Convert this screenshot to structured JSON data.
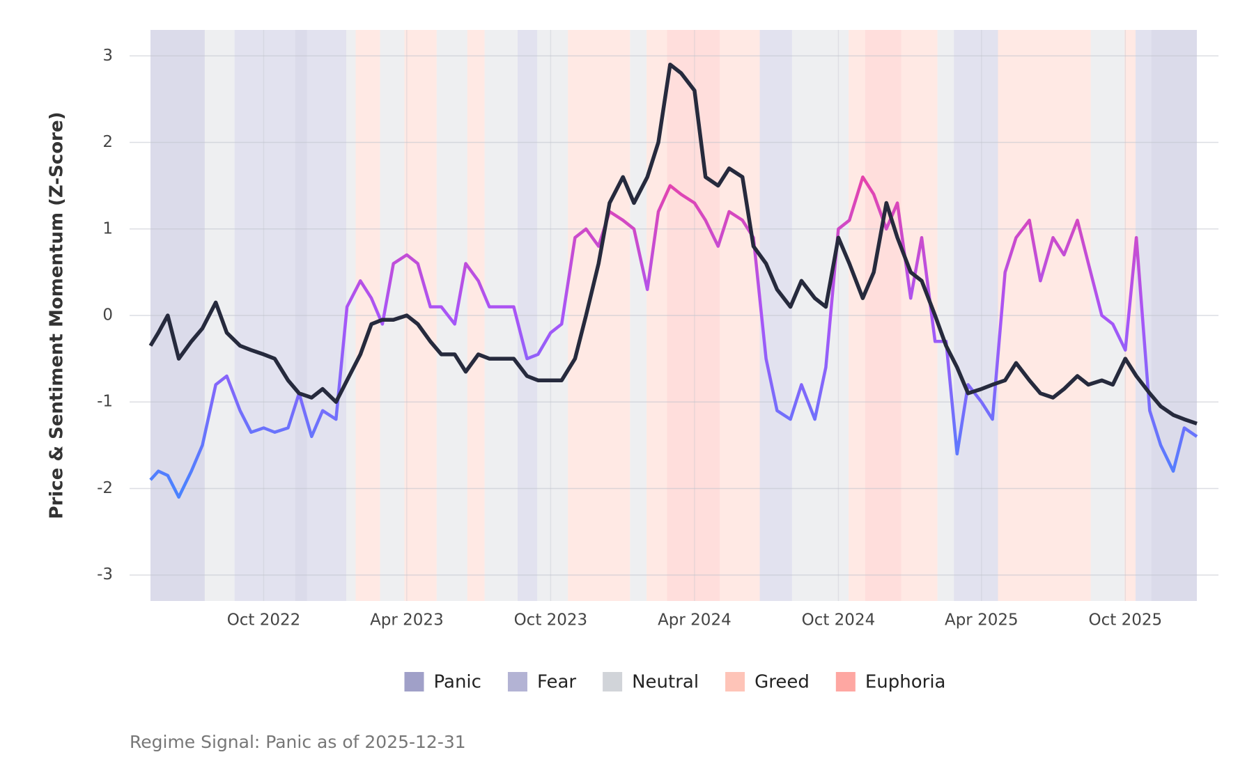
{
  "chart_data": {
    "type": "line",
    "y_label": "Price & Sentiment Momentum (Z-Score)",
    "annotation": "Regime Signal: Panic as of 2025-12-31",
    "xlim": [
      "2022-05-10",
      "2025-12-31"
    ],
    "xticks": [
      {
        "value": "2022-10-01",
        "label": "Oct 2022"
      },
      {
        "value": "2023-04-01",
        "label": "Apr 2023"
      },
      {
        "value": "2023-10-01",
        "label": "Oct 2023"
      },
      {
        "value": "2024-04-01",
        "label": "Apr 2024"
      },
      {
        "value": "2024-10-01",
        "label": "Oct 2024"
      },
      {
        "value": "2025-04-01",
        "label": "Apr 2025"
      },
      {
        "value": "2025-10-01",
        "label": "Oct 2025"
      }
    ],
    "ylim": [
      -3.3,
      3.3
    ],
    "yticks": [
      -3,
      -2,
      -1,
      0,
      1,
      2,
      3
    ],
    "grid": true,
    "legend": [
      {
        "name": "Panic",
        "color": "#a0a0c8"
      },
      {
        "name": "Fear",
        "color": "#b3b3d4"
      },
      {
        "name": "Neutral",
        "color": "#d1d4d9"
      },
      {
        "name": "Greed",
        "color": "#fec4b8"
      },
      {
        "name": "Euphoria",
        "color": "#fea7a2"
      }
    ],
    "regimes": [
      {
        "start": "2022-05-10",
        "regime": "Panic"
      },
      {
        "start": "2022-07-18",
        "regime": "Neutral"
      },
      {
        "start": "2022-08-25",
        "regime": "Fear"
      },
      {
        "start": "2022-11-10",
        "regime": "Panic"
      },
      {
        "start": "2022-11-25",
        "regime": "Fear"
      },
      {
        "start": "2023-01-14",
        "regime": "Neutral"
      },
      {
        "start": "2023-01-26",
        "regime": "Greed"
      },
      {
        "start": "2023-02-26",
        "regime": "Neutral"
      },
      {
        "start": "2023-03-29",
        "regime": "Greed"
      },
      {
        "start": "2023-05-09",
        "regime": "Neutral"
      },
      {
        "start": "2023-06-17",
        "regime": "Greed"
      },
      {
        "start": "2023-07-09",
        "regime": "Neutral"
      },
      {
        "start": "2023-08-20",
        "regime": "Fear"
      },
      {
        "start": "2023-09-14",
        "regime": "Neutral"
      },
      {
        "start": "2023-10-23",
        "regime": "Greed"
      },
      {
        "start": "2024-01-10",
        "regime": "Neutral"
      },
      {
        "start": "2024-01-31",
        "regime": "Greed"
      },
      {
        "start": "2024-02-26",
        "regime": "Euphoria"
      },
      {
        "start": "2024-05-03",
        "regime": "Greed"
      },
      {
        "start": "2024-06-23",
        "regime": "Fear"
      },
      {
        "start": "2024-08-03",
        "regime": "Neutral"
      },
      {
        "start": "2024-10-14",
        "regime": "Greed"
      },
      {
        "start": "2024-11-04",
        "regime": "Euphoria"
      },
      {
        "start": "2024-12-20",
        "regime": "Greed"
      },
      {
        "start": "2025-02-04",
        "regime": "Neutral"
      },
      {
        "start": "2025-02-25",
        "regime": "Fear"
      },
      {
        "start": "2025-04-22",
        "regime": "Greed"
      },
      {
        "start": "2025-08-18",
        "regime": "Neutral"
      },
      {
        "start": "2025-09-30",
        "regime": "Greed"
      },
      {
        "start": "2025-10-14",
        "regime": "Fear"
      },
      {
        "start": "2025-11-03",
        "regime": "Panic"
      }
    ],
    "x": [
      "2022-05-10",
      "2022-05-20",
      "2022-06-01",
      "2022-06-15",
      "2022-07-01",
      "2022-07-15",
      "2022-08-01",
      "2022-08-15",
      "2022-09-01",
      "2022-09-15",
      "2022-10-01",
      "2022-10-15",
      "2022-11-01",
      "2022-11-15",
      "2022-12-01",
      "2022-12-15",
      "2023-01-01",
      "2023-01-15",
      "2023-02-01",
      "2023-02-15",
      "2023-03-01",
      "2023-03-15",
      "2023-04-01",
      "2023-04-15",
      "2023-05-01",
      "2023-05-15",
      "2023-06-01",
      "2023-06-15",
      "2023-07-01",
      "2023-07-15",
      "2023-08-01",
      "2023-08-15",
      "2023-09-01",
      "2023-09-15",
      "2023-10-01",
      "2023-10-15",
      "2023-11-01",
      "2023-11-15",
      "2023-12-01",
      "2023-12-15",
      "2024-01-01",
      "2024-01-15",
      "2024-02-01",
      "2024-02-15",
      "2024-03-01",
      "2024-03-15",
      "2024-04-01",
      "2024-04-15",
      "2024-05-01",
      "2024-05-15",
      "2024-06-01",
      "2024-06-15",
      "2024-07-01",
      "2024-07-15",
      "2024-08-01",
      "2024-08-15",
      "2024-09-01",
      "2024-09-15",
      "2024-10-01",
      "2024-10-15",
      "2024-11-01",
      "2024-11-15",
      "2024-12-01",
      "2024-12-15",
      "2025-01-01",
      "2025-01-15",
      "2025-02-01",
      "2025-02-15",
      "2025-03-01",
      "2025-03-15",
      "2025-04-01",
      "2025-04-15",
      "2025-05-01",
      "2025-05-15",
      "2025-06-01",
      "2025-06-15",
      "2025-07-01",
      "2025-07-15",
      "2025-08-01",
      "2025-08-15",
      "2025-09-01",
      "2025-09-15",
      "2025-10-01",
      "2025-10-15",
      "2025-11-01",
      "2025-11-15",
      "2025-12-01",
      "2025-12-15",
      "2025-12-31"
    ],
    "series": [
      {
        "color": "gradient",
        "gradient_stops": [
          {
            "value": -2,
            "color": "#4b82ff"
          },
          {
            "value": 0,
            "color": "#a855f7"
          },
          {
            "value": 2,
            "color": "#f53f98"
          }
        ],
        "values": [
          -1.9,
          -1.8,
          -1.85,
          -2.1,
          -1.8,
          -1.5,
          -0.8,
          -0.7,
          -1.1,
          -1.35,
          -1.3,
          -1.35,
          -1.3,
          -0.9,
          -1.4,
          -1.1,
          -1.2,
          0.1,
          0.4,
          0.2,
          -0.1,
          0.6,
          0.7,
          0.6,
          0.1,
          0.1,
          -0.1,
          0.6,
          0.4,
          0.1,
          0.1,
          0.1,
          -0.5,
          -0.45,
          -0.2,
          -0.1,
          0.9,
          1.0,
          0.8,
          1.2,
          1.1,
          1.0,
          0.3,
          1.2,
          1.5,
          1.4,
          1.3,
          1.1,
          0.8,
          1.2,
          1.1,
          0.9,
          -0.5,
          -1.1,
          -1.2,
          -0.8,
          -1.2,
          -0.6,
          1.0,
          1.1,
          1.6,
          1.4,
          1.0,
          1.3,
          0.2,
          0.9,
          -0.3,
          -0.3,
          -1.6,
          -0.8,
          -1.0,
          -1.2,
          0.5,
          0.9,
          1.1,
          0.4,
          0.9,
          0.7,
          1.1,
          0.6,
          0.0,
          -0.1,
          -0.4,
          0.9,
          -1.1,
          -1.5,
          -1.8,
          -1.3,
          -1.4
        ]
      },
      {
        "color": "#262a3d",
        "values": [
          -0.35,
          -0.2,
          0.0,
          -0.5,
          -0.3,
          -0.15,
          0.15,
          -0.2,
          -0.35,
          -0.4,
          -0.45,
          -0.5,
          -0.75,
          -0.9,
          -0.95,
          -0.85,
          -1.0,
          -0.75,
          -0.45,
          -0.1,
          -0.05,
          -0.05,
          0.0,
          -0.1,
          -0.3,
          -0.45,
          -0.45,
          -0.65,
          -0.45,
          -0.5,
          -0.5,
          -0.5,
          -0.7,
          -0.75,
          -0.75,
          -0.75,
          -0.5,
          0.0,
          0.6,
          1.3,
          1.6,
          1.3,
          1.6,
          2.0,
          2.9,
          2.8,
          2.6,
          1.6,
          1.5,
          1.7,
          1.6,
          0.8,
          0.6,
          0.3,
          0.1,
          0.4,
          0.2,
          0.1,
          0.9,
          0.6,
          0.2,
          0.5,
          1.3,
          0.9,
          0.5,
          0.4,
          0.0,
          -0.35,
          -0.6,
          -0.9,
          -0.85,
          -0.8,
          -0.75,
          -0.55,
          -0.75,
          -0.9,
          -0.95,
          -0.85,
          -0.7,
          -0.8,
          -0.75,
          -0.8,
          -0.5,
          -0.7,
          -0.9,
          -1.05,
          -1.15,
          -1.2,
          -1.25
        ]
      }
    ]
  }
}
